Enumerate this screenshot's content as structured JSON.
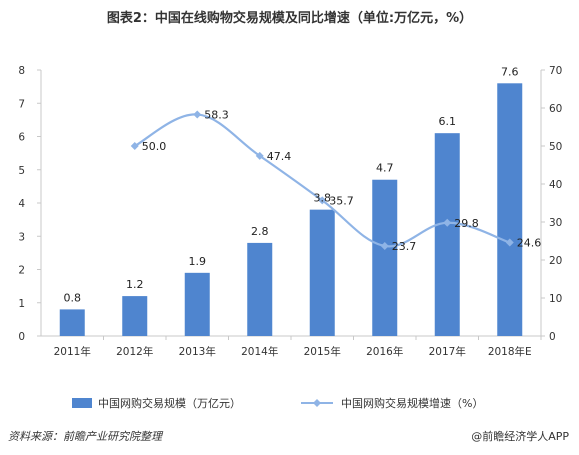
{
  "title": "图表2：中国在线购物交易规模及同比增速（单位:万亿元，%）",
  "footer": {
    "source": "资料来源：前瞻产业研究院整理",
    "brand": "@前瞻经济学人APP"
  },
  "colors": {
    "bar": "#4f85cf",
    "line": "#8fb4e6",
    "axis": "#c8c8c8"
  },
  "chart_data": {
    "type": "bar",
    "categories": [
      "2011年",
      "2012年",
      "2013年",
      "2014年",
      "2015年",
      "2016年",
      "2017年",
      "2018年E"
    ],
    "series": [
      {
        "name": "中国网购交易规模（万亿元）",
        "type": "bar",
        "axis": "left",
        "values": [
          0.8,
          1.2,
          1.9,
          2.8,
          3.8,
          4.7,
          6.1,
          7.6
        ],
        "labels": [
          "0.8",
          "1.2",
          "1.9",
          "2.8",
          "3.8",
          "4.7",
          "6.1",
          "7.6"
        ]
      },
      {
        "name": "中国网购交易规模增速（%）",
        "type": "line",
        "axis": "right",
        "values": [
          null,
          50.0,
          58.3,
          47.4,
          35.7,
          23.7,
          29.8,
          24.6
        ],
        "labels": [
          "",
          "50.0",
          "58.3",
          "47.4",
          "35.7",
          "23.7",
          "29.8",
          "24.6"
        ]
      }
    ],
    "y_left": {
      "min": 0,
      "max": 8,
      "ticks": [
        "0",
        "1",
        "2",
        "3",
        "4",
        "5",
        "6",
        "7",
        "8"
      ]
    },
    "y_right": {
      "min": 0,
      "max": 70,
      "ticks": [
        "0",
        "10",
        "20",
        "30",
        "40",
        "50",
        "60",
        "70"
      ]
    },
    "grid": false,
    "legend_position": "bottom"
  }
}
